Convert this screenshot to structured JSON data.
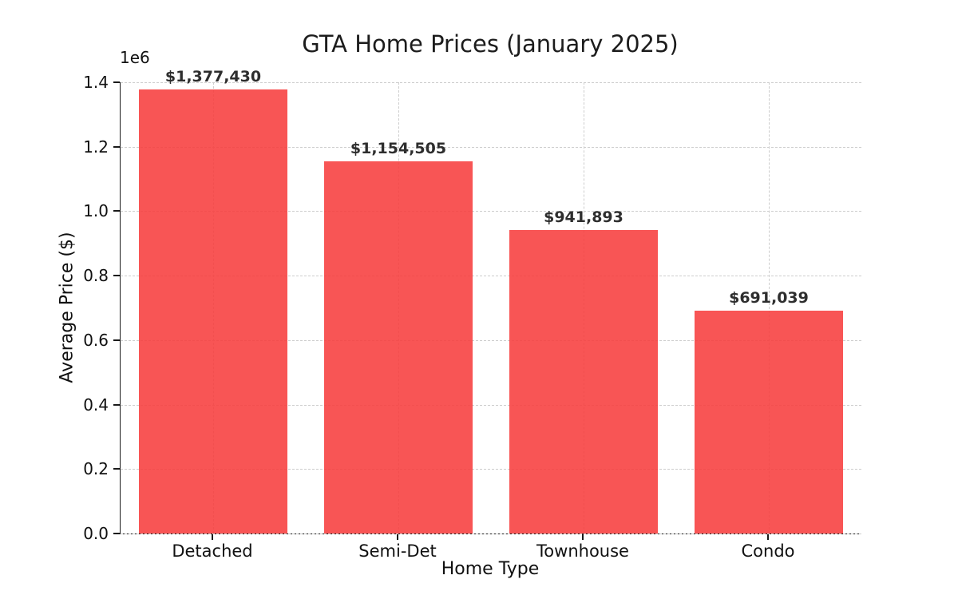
{
  "chart_data": {
    "type": "bar",
    "title": "GTA Home Prices (January 2025)",
    "xlabel": "Home Type",
    "ylabel": "Average Price ($)",
    "offset_text": "1e6",
    "categories": [
      "Detached",
      "Semi-Det",
      "Townhouse",
      "Condo"
    ],
    "values": [
      1377430,
      1154505,
      941893,
      691039
    ],
    "value_labels": [
      "$1,377,430",
      "$1,154,505",
      "$941,893",
      "$691,039"
    ],
    "ylim": [
      0,
      1400000
    ],
    "yticks": [
      0,
      200000,
      400000,
      600000,
      800000,
      1000000,
      1200000,
      1400000
    ],
    "ytick_labels": [
      "0.0",
      "0.2",
      "0.4",
      "0.6",
      "0.8",
      "1.0",
      "1.2",
      "1.4"
    ],
    "grid": true,
    "grid_style": "dashed",
    "legend": false,
    "bar_color": "#f73d3d",
    "bar_opacity": 0.88,
    "bar_width_fraction": 0.8,
    "grid_color": "#cdcdcd"
  }
}
